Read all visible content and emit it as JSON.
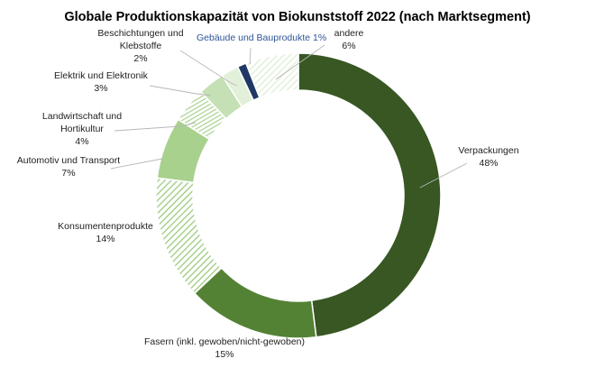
{
  "chart_data": {
    "type": "pie",
    "title": "Globale Produktionskapazität von Biokunststoff 2022 (nach Marktsegment)",
    "variant": "donut",
    "unit": "%",
    "series": [
      {
        "values": [
          {
            "label_lines": [
              "Verpackungen"
            ],
            "value_label": "48%",
            "value": 48,
            "color": "#385723",
            "pattern": "solid"
          },
          {
            "label_lines": [
              "Fasern (inkl. gewoben/nicht-gewoben)"
            ],
            "value_label": "15%",
            "value": 15,
            "color": "#548235",
            "pattern": "solid"
          },
          {
            "label_lines": [
              "Konsumentenprodukte"
            ],
            "value_label": "14%",
            "value": 14,
            "color": "#a9d18e",
            "pattern": "hatched"
          },
          {
            "label_lines": [
              "Automotiv und Transport"
            ],
            "value_label": "7%",
            "value": 7,
            "color": "#a9d18e",
            "pattern": "solid"
          },
          {
            "label_lines": [
              "Landwirtschaft und",
              "Hortikultur"
            ],
            "value_label": "4%",
            "value": 4,
            "color": "#a9d18e",
            "pattern": "hatched-vertical"
          },
          {
            "label_lines": [
              "Elektrik und Elektronik"
            ],
            "value_label": "3%",
            "value": 3,
            "color": "#c5e0b4",
            "pattern": "solid"
          },
          {
            "label_lines": [
              "Beschichtungen und",
              "Klebstoffe"
            ],
            "value_label": "2%",
            "value": 2,
            "color": "#e2f0d9",
            "pattern": "solid"
          },
          {
            "label_lines": [
              "Gebäude und Bauprodukte 1%"
            ],
            "value_label": "",
            "value": 1,
            "color": "#203864",
            "pattern": "solid",
            "label_color": "#2e5597"
          },
          {
            "label_lines": [
              "andere"
            ],
            "value_label": "6%",
            "value": 6,
            "color": "#e2f0d9",
            "pattern": "hatched-light"
          }
        ]
      }
    ],
    "legend": "none, labels next to slices with leader lines"
  }
}
